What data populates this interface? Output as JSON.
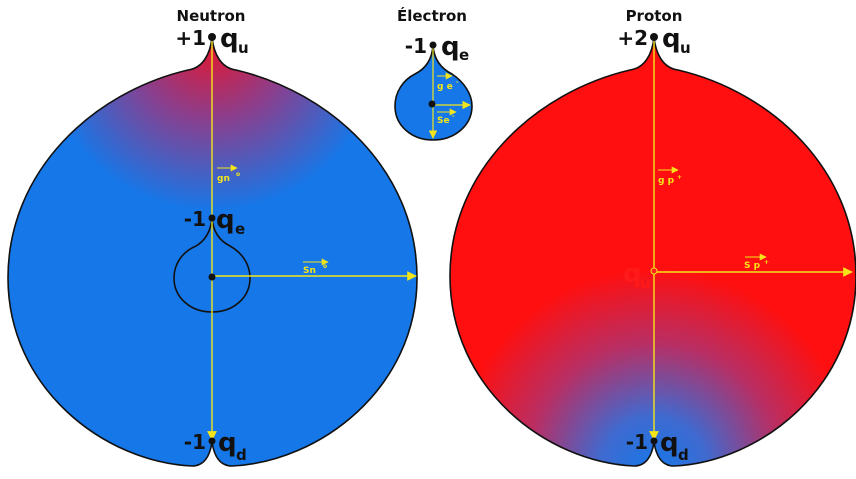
{
  "colors": {
    "blue": "#1677e8",
    "red": "#ff0f0f",
    "vector": "#f4e51a",
    "outline": "#111111"
  },
  "neutron": {
    "title": "Neutron",
    "top": {
      "charge": "+1",
      "quark": "q",
      "sub": "u"
    },
    "middle": {
      "charge": "-1",
      "quark": "q",
      "sub": "e"
    },
    "bottom": {
      "charge": "-1",
      "quark": "q",
      "sub": "d"
    },
    "vec_g": "gn",
    "vec_s": "Sn",
    "vec_sup": "o"
  },
  "electron": {
    "title": "Électron",
    "top": {
      "charge": "-1",
      "quark": "q",
      "sub": "e"
    },
    "vec_g": "g e",
    "vec_s": "Se",
    "vec_sup": "-"
  },
  "proton": {
    "title": "Proton",
    "top": {
      "charge": "+2",
      "quark": "q",
      "sub": "u"
    },
    "center": {
      "quark": "q",
      "sub": "u"
    },
    "bottom": {
      "charge": "-1",
      "quark": "q",
      "sub": "d"
    },
    "vec_g": "g p",
    "vec_s": "S p",
    "vec_sup": "+"
  }
}
